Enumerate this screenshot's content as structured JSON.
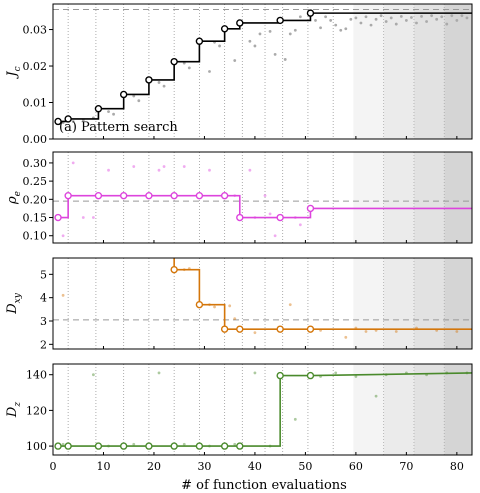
{
  "chart_data": {
    "type": "line",
    "xlabel": "# of function evaluations",
    "xlim": [
      0,
      83
    ],
    "xticks": [
      0,
      10,
      20,
      30,
      40,
      50,
      60,
      70,
      80
    ],
    "iteration_lines": [
      3,
      8.5,
      14,
      19,
      24,
      29,
      34,
      37.5,
      42,
      45.5,
      50.5,
      55.5
    ],
    "shaded_bands": [
      {
        "x": [
          59.5,
          65.5
        ],
        "color": "#f4f4f4"
      },
      {
        "x": [
          65.5,
          71.5
        ],
        "color": "#ebebeb"
      },
      {
        "x": [
          71.5,
          77.5
        ],
        "color": "#e2e2e2"
      },
      {
        "x": [
          77.5,
          83
        ],
        "color": "#d5d5d5"
      }
    ],
    "panels": [
      {
        "ylabel": "J_c",
        "ylabel_main": "J",
        "ylabel_sub": "c",
        "ylim": [
          0,
          0.037
        ],
        "yticks": [
          "0.00",
          "0.01",
          "0.02",
          "0.03"
        ],
        "reference_y": 0.0355,
        "annotation": "(a) Pattern search",
        "color": "#000000",
        "best_points": [
          {
            "x": 1,
            "y": 0.0048
          },
          {
            "x": 3,
            "y": 0.0055
          },
          {
            "x": 9,
            "y": 0.0083
          },
          {
            "x": 14,
            "y": 0.0122
          },
          {
            "x": 19,
            "y": 0.0162
          },
          {
            "x": 24,
            "y": 0.0212
          },
          {
            "x": 29,
            "y": 0.0268
          },
          {
            "x": 34,
            "y": 0.0302
          },
          {
            "x": 37,
            "y": 0.0318
          },
          {
            "x": 45,
            "y": 0.0325
          },
          {
            "x": 51,
            "y": 0.0345
          }
        ],
        "trials": [
          {
            "x": 2,
            "y": 0.0045
          },
          {
            "x": 4,
            "y": 0.0048
          },
          {
            "x": 6,
            "y": 0.0052
          },
          {
            "x": 8,
            "y": 0.0058
          },
          {
            "x": 11,
            "y": 0.0075
          },
          {
            "x": 12,
            "y": 0.0068
          },
          {
            "x": 16,
            "y": 0.0118
          },
          {
            "x": 17,
            "y": 0.0105
          },
          {
            "x": 21,
            "y": 0.0155
          },
          {
            "x": 22,
            "y": 0.0145
          },
          {
            "x": 26,
            "y": 0.0208
          },
          {
            "x": 27,
            "y": 0.0195
          },
          {
            "x": 31,
            "y": 0.0185
          },
          {
            "x": 32,
            "y": 0.0265
          },
          {
            "x": 33,
            "y": 0.0255
          },
          {
            "x": 36,
            "y": 0.0215
          },
          {
            "x": 39,
            "y": 0.0268
          },
          {
            "x": 40,
            "y": 0.0255
          },
          {
            "x": 41,
            "y": 0.0288
          },
          {
            "x": 43,
            "y": 0.0295
          },
          {
            "x": 44,
            "y": 0.0232
          },
          {
            "x": 46,
            "y": 0.0218
          },
          {
            "x": 47,
            "y": 0.0288
          },
          {
            "x": 48,
            "y": 0.0298
          },
          {
            "x": 49,
            "y": 0.0335
          },
          {
            "x": 52,
            "y": 0.0325
          },
          {
            "x": 53,
            "y": 0.0305
          },
          {
            "x": 54,
            "y": 0.0335
          },
          {
            "x": 55,
            "y": 0.0325
          },
          {
            "x": 56,
            "y": 0.0312
          },
          {
            "x": 57,
            "y": 0.0298
          },
          {
            "x": 58,
            "y": 0.0302
          },
          {
            "x": 59,
            "y": 0.0328
          },
          {
            "x": 60,
            "y": 0.0332
          },
          {
            "x": 61,
            "y": 0.0318
          },
          {
            "x": 62,
            "y": 0.0335
          },
          {
            "x": 63,
            "y": 0.0312
          },
          {
            "x": 64,
            "y": 0.0328
          },
          {
            "x": 65,
            "y": 0.0338
          },
          {
            "x": 66,
            "y": 0.0322
          },
          {
            "x": 67,
            "y": 0.0332
          },
          {
            "x": 68,
            "y": 0.0315
          },
          {
            "x": 69,
            "y": 0.0336
          },
          {
            "x": 70,
            "y": 0.0325
          },
          {
            "x": 71,
            "y": 0.0333
          },
          {
            "x": 72,
            "y": 0.0318
          },
          {
            "x": 73,
            "y": 0.0336
          },
          {
            "x": 74,
            "y": 0.0322
          },
          {
            "x": 75,
            "y": 0.0338
          },
          {
            "x": 76,
            "y": 0.0328
          },
          {
            "x": 77,
            "y": 0.0335
          },
          {
            "x": 78,
            "y": 0.0315
          },
          {
            "x": 79,
            "y": 0.0338
          },
          {
            "x": 80,
            "y": 0.0325
          },
          {
            "x": 81,
            "y": 0.0338
          },
          {
            "x": 82,
            "y": 0.0332
          }
        ]
      },
      {
        "ylabel": "rho_e",
        "ylabel_main": "ρ",
        "ylabel_sub": "e",
        "ylim": [
          0.08,
          0.33
        ],
        "yticks": [
          "0.10",
          "0.15",
          "0.20",
          "0.25",
          "0.30"
        ],
        "reference_y": 0.195,
        "color": "#dd44dd",
        "best_points": [
          {
            "x": 1,
            "y": 0.15
          },
          {
            "x": 3,
            "y": 0.21
          },
          {
            "x": 9,
            "y": 0.21
          },
          {
            "x": 14,
            "y": 0.21
          },
          {
            "x": 19,
            "y": 0.21
          },
          {
            "x": 24,
            "y": 0.21
          },
          {
            "x": 29,
            "y": 0.21
          },
          {
            "x": 34,
            "y": 0.21
          },
          {
            "x": 37,
            "y": 0.15
          },
          {
            "x": 45,
            "y": 0.15
          },
          {
            "x": 51,
            "y": 0.175
          }
        ],
        "final_y": 0.175,
        "trials": [
          {
            "x": 2,
            "y": 0.1
          },
          {
            "x": 4,
            "y": 0.3
          },
          {
            "x": 6,
            "y": 0.15
          },
          {
            "x": 8,
            "y": 0.15
          },
          {
            "x": 11,
            "y": 0.28
          },
          {
            "x": 16,
            "y": 0.29
          },
          {
            "x": 21,
            "y": 0.28
          },
          {
            "x": 22,
            "y": 0.29
          },
          {
            "x": 26,
            "y": 0.29
          },
          {
            "x": 31,
            "y": 0.28
          },
          {
            "x": 36,
            "y": 0.21
          },
          {
            "x": 39,
            "y": 0.28
          },
          {
            "x": 40,
            "y": 0.15
          },
          {
            "x": 42,
            "y": 0.21
          },
          {
            "x": 43,
            "y": 0.16
          },
          {
            "x": 44,
            "y": 0.1
          },
          {
            "x": 48,
            "y": 0.15
          },
          {
            "x": 49,
            "y": 0.13
          }
        ]
      },
      {
        "ylabel": "D_xy",
        "ylabel_main": "D",
        "ylabel_sub": "xy",
        "ylim": [
          1.8,
          5.7
        ],
        "yticks": [
          "2",
          "3",
          "4",
          "5"
        ],
        "reference_y": 3.05,
        "color": "#d4760a",
        "best_points": [
          {
            "x": 24,
            "y": 5.2
          },
          {
            "x": 29,
            "y": 3.7
          },
          {
            "x": 34,
            "y": 2.65
          },
          {
            "x": 37,
            "y": 2.65
          },
          {
            "x": 45,
            "y": 2.65
          },
          {
            "x": 51,
            "y": 2.65
          }
        ],
        "final_y": 2.65,
        "trials": [
          {
            "x": 2,
            "y": 4.1
          },
          {
            "x": 26,
            "y": 5.2
          },
          {
            "x": 27,
            "y": 5.25
          },
          {
            "x": 31,
            "y": 3.7
          },
          {
            "x": 32,
            "y": 3.6
          },
          {
            "x": 35,
            "y": 3.65
          },
          {
            "x": 36,
            "y": 3.1
          },
          {
            "x": 40,
            "y": 2.5
          },
          {
            "x": 47,
            "y": 3.7
          },
          {
            "x": 53,
            "y": 2.6
          },
          {
            "x": 58,
            "y": 2.3
          },
          {
            "x": 60,
            "y": 2.7
          },
          {
            "x": 62,
            "y": 2.55
          },
          {
            "x": 64,
            "y": 2.6
          },
          {
            "x": 68,
            "y": 2.55
          },
          {
            "x": 72,
            "y": 2.7
          },
          {
            "x": 76,
            "y": 2.6
          },
          {
            "x": 80,
            "y": 2.55
          }
        ]
      },
      {
        "ylabel": "D_z",
        "ylabel_main": "D",
        "ylabel_sub": "z",
        "ylim": [
          95,
          146
        ],
        "yticks": [
          "100",
          "120",
          "140"
        ],
        "color": "#4a8a2c",
        "best_points": [
          {
            "x": 1,
            "y": 100
          },
          {
            "x": 3,
            "y": 100
          },
          {
            "x": 9,
            "y": 100
          },
          {
            "x": 14,
            "y": 100
          },
          {
            "x": 19,
            "y": 100
          },
          {
            "x": 24,
            "y": 100
          },
          {
            "x": 29,
            "y": 100
          },
          {
            "x": 34,
            "y": 100
          },
          {
            "x": 37,
            "y": 100
          },
          {
            "x": 45,
            "y": 139.5
          },
          {
            "x": 51,
            "y": 139.5
          }
        ],
        "tail": [
          {
            "x": 51,
            "y": 139.5
          },
          {
            "x": 83,
            "y": 141
          }
        ],
        "trials": [
          {
            "x": 2,
            "y": 101
          },
          {
            "x": 8,
            "y": 140
          },
          {
            "x": 11,
            "y": 100
          },
          {
            "x": 16,
            "y": 101
          },
          {
            "x": 21,
            "y": 141
          },
          {
            "x": 26,
            "y": 101
          },
          {
            "x": 31,
            "y": 100
          },
          {
            "x": 36,
            "y": 101
          },
          {
            "x": 40,
            "y": 141
          },
          {
            "x": 43,
            "y": 100
          },
          {
            "x": 48,
            "y": 115
          },
          {
            "x": 53,
            "y": 139
          },
          {
            "x": 56,
            "y": 141
          },
          {
            "x": 60,
            "y": 139
          },
          {
            "x": 64,
            "y": 128
          },
          {
            "x": 66,
            "y": 140
          },
          {
            "x": 70,
            "y": 141
          },
          {
            "x": 74,
            "y": 140
          },
          {
            "x": 78,
            "y": 141
          },
          {
            "x": 82,
            "y": 141
          }
        ]
      }
    ]
  }
}
